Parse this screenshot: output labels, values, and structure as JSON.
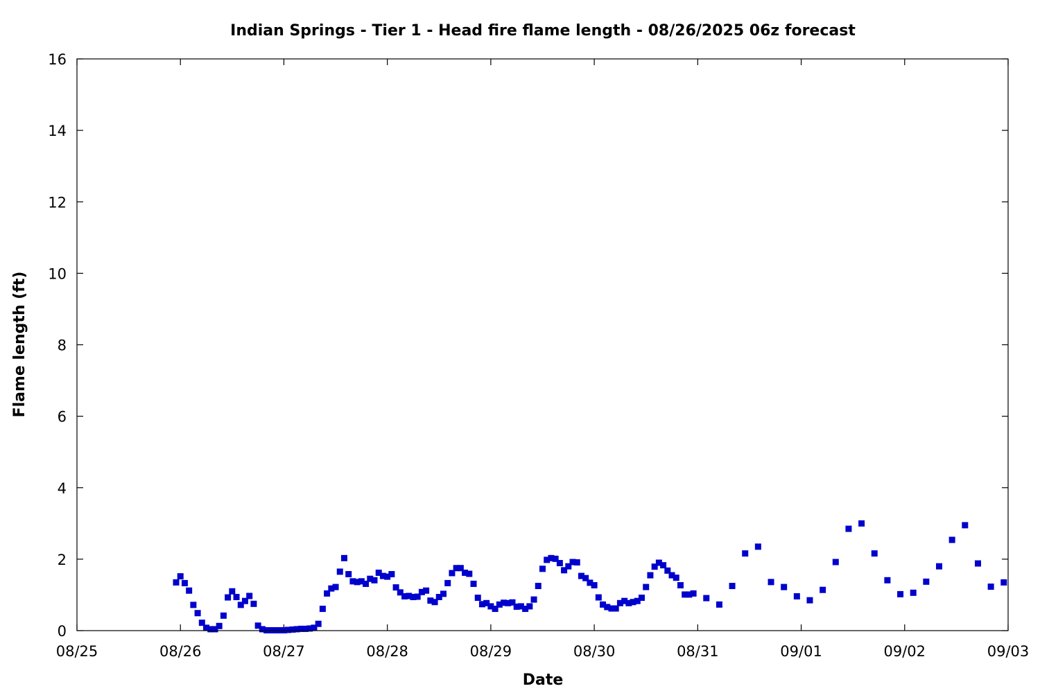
{
  "chart_data": {
    "type": "scatter",
    "title": "Indian Springs - Tier 1 - Head fire flame length - 08/26/2025 06z forecast",
    "xlabel": "Date",
    "ylabel": "Flame length (ft)",
    "x_tick_labels": [
      "08/25",
      "08/26",
      "08/27",
      "08/28",
      "08/29",
      "08/30",
      "08/31",
      "09/01",
      "09/02",
      "09/03"
    ],
    "y_tick_labels": [
      "0",
      "2",
      "4",
      "6",
      "8",
      "10",
      "12",
      "14",
      "16"
    ],
    "xlim": [
      "2025-08-25 00:00",
      "2025-09-03 00:00"
    ],
    "ylim": [
      0,
      16
    ],
    "grid": false,
    "marker": "square",
    "colors": {
      "series": "#0000cc",
      "axis": "#000000",
      "background": "#ffffff"
    },
    "series": [
      {
        "x": [
          "2025-08-25 23:00",
          "2025-08-26 00:00",
          "2025-08-26 01:00",
          "2025-08-26 02:00",
          "2025-08-26 03:00",
          "2025-08-26 04:00",
          "2025-08-26 05:00",
          "2025-08-26 06:00",
          "2025-08-26 07:00",
          "2025-08-26 08:00",
          "2025-08-26 09:00",
          "2025-08-26 10:00",
          "2025-08-26 11:00",
          "2025-08-26 12:00",
          "2025-08-26 13:00",
          "2025-08-26 14:00",
          "2025-08-26 15:00",
          "2025-08-26 16:00",
          "2025-08-26 17:00",
          "2025-08-26 18:00",
          "2025-08-26 19:00",
          "2025-08-26 20:00",
          "2025-08-26 21:00",
          "2025-08-26 22:00",
          "2025-08-26 23:00",
          "2025-08-27 00:00",
          "2025-08-27 01:00",
          "2025-08-27 02:00",
          "2025-08-27 03:00",
          "2025-08-27 04:00",
          "2025-08-27 05:00",
          "2025-08-27 06:00",
          "2025-08-27 07:00",
          "2025-08-27 08:00",
          "2025-08-27 09:00",
          "2025-08-27 10:00",
          "2025-08-27 11:00",
          "2025-08-27 12:00",
          "2025-08-27 13:00",
          "2025-08-27 14:00",
          "2025-08-27 15:00",
          "2025-08-27 16:00",
          "2025-08-27 17:00",
          "2025-08-27 18:00",
          "2025-08-27 19:00",
          "2025-08-27 20:00",
          "2025-08-27 21:00",
          "2025-08-27 22:00",
          "2025-08-27 23:00",
          "2025-08-28 00:00",
          "2025-08-28 01:00",
          "2025-08-28 02:00",
          "2025-08-28 03:00",
          "2025-08-28 04:00",
          "2025-08-28 05:00",
          "2025-08-28 06:00",
          "2025-08-28 07:00",
          "2025-08-28 08:00",
          "2025-08-28 09:00",
          "2025-08-28 10:00",
          "2025-08-28 11:00",
          "2025-08-28 12:00",
          "2025-08-28 13:00",
          "2025-08-28 14:00",
          "2025-08-28 15:00",
          "2025-08-28 16:00",
          "2025-08-28 17:00",
          "2025-08-28 18:00",
          "2025-08-28 19:00",
          "2025-08-28 20:00",
          "2025-08-28 21:00",
          "2025-08-28 22:00",
          "2025-08-28 23:00",
          "2025-08-29 00:00",
          "2025-08-29 01:00",
          "2025-08-29 02:00",
          "2025-08-29 03:00",
          "2025-08-29 04:00",
          "2025-08-29 05:00",
          "2025-08-29 06:00",
          "2025-08-29 07:00",
          "2025-08-29 08:00",
          "2025-08-29 09:00",
          "2025-08-29 10:00",
          "2025-08-29 11:00",
          "2025-08-29 12:00",
          "2025-08-29 13:00",
          "2025-08-29 14:00",
          "2025-08-29 15:00",
          "2025-08-29 16:00",
          "2025-08-29 17:00",
          "2025-08-29 18:00",
          "2025-08-29 19:00",
          "2025-08-29 20:00",
          "2025-08-29 21:00",
          "2025-08-29 22:00",
          "2025-08-29 23:00",
          "2025-08-30 00:00",
          "2025-08-30 01:00",
          "2025-08-30 02:00",
          "2025-08-30 03:00",
          "2025-08-30 04:00",
          "2025-08-30 05:00",
          "2025-08-30 06:00",
          "2025-08-30 07:00",
          "2025-08-30 08:00",
          "2025-08-30 09:00",
          "2025-08-30 10:00",
          "2025-08-30 11:00",
          "2025-08-30 12:00",
          "2025-08-30 13:00",
          "2025-08-30 14:00",
          "2025-08-30 15:00",
          "2025-08-30 16:00",
          "2025-08-30 17:00",
          "2025-08-30 18:00",
          "2025-08-30 19:00",
          "2025-08-30 20:00",
          "2025-08-30 21:00",
          "2025-08-30 22:00",
          "2025-08-30 23:00",
          "2025-08-31 02:00",
          "2025-08-31 05:00",
          "2025-08-31 08:00",
          "2025-08-31 11:00",
          "2025-08-31 14:00",
          "2025-08-31 17:00",
          "2025-08-31 20:00",
          "2025-08-31 23:00",
          "2025-09-01 02:00",
          "2025-09-01 05:00",
          "2025-09-01 08:00",
          "2025-09-01 11:00",
          "2025-09-01 14:00",
          "2025-09-01 17:00",
          "2025-09-01 20:00",
          "2025-09-01 23:00",
          "2025-09-02 02:00",
          "2025-09-02 05:00",
          "2025-09-02 08:00",
          "2025-09-02 11:00",
          "2025-09-02 14:00",
          "2025-09-02 17:00",
          "2025-09-02 20:00",
          "2025-09-02 23:00"
        ],
        "y": [
          1.35,
          1.52,
          1.33,
          1.12,
          0.72,
          0.49,
          0.22,
          0.08,
          0.04,
          0.04,
          0.13,
          0.42,
          0.93,
          1.1,
          0.94,
          0.72,
          0.83,
          0.97,
          0.75,
          0.14,
          0.04,
          0.01,
          0.01,
          0.01,
          0.01,
          0.01,
          0.02,
          0.03,
          0.04,
          0.05,
          0.05,
          0.06,
          0.08,
          0.19,
          0.61,
          1.04,
          1.18,
          1.22,
          1.65,
          2.03,
          1.58,
          1.38,
          1.36,
          1.38,
          1.31,
          1.45,
          1.41,
          1.62,
          1.53,
          1.51,
          1.58,
          1.21,
          1.07,
          0.96,
          0.97,
          0.94,
          0.95,
          1.08,
          1.12,
          0.84,
          0.8,
          0.94,
          1.03,
          1.33,
          1.61,
          1.75,
          1.75,
          1.62,
          1.59,
          1.31,
          0.92,
          0.74,
          0.77,
          0.68,
          0.61,
          0.73,
          0.78,
          0.77,
          0.79,
          0.67,
          0.68,
          0.61,
          0.68,
          0.87,
          1.25,
          1.73,
          1.98,
          2.03,
          2.01,
          1.89,
          1.69,
          1.8,
          1.92,
          1.91,
          1.53,
          1.47,
          1.34,
          1.27,
          0.93,
          0.73,
          0.66,
          0.62,
          0.62,
          0.77,
          0.83,
          0.77,
          0.8,
          0.83,
          0.92,
          1.22,
          1.55,
          1.79,
          1.9,
          1.83,
          1.68,
          1.55,
          1.48,
          1.27,
          1.01,
          1.01,
          1.04,
          0.91,
          0.73,
          1.25,
          2.16,
          2.35,
          1.36,
          1.22,
          0.96,
          0.85,
          1.14,
          1.92,
          2.85,
          3.0,
          2.16,
          1.41,
          1.02,
          1.06,
          1.37,
          1.8,
          2.54,
          2.95,
          1.88,
          1.23,
          1.35
        ]
      }
    ]
  }
}
